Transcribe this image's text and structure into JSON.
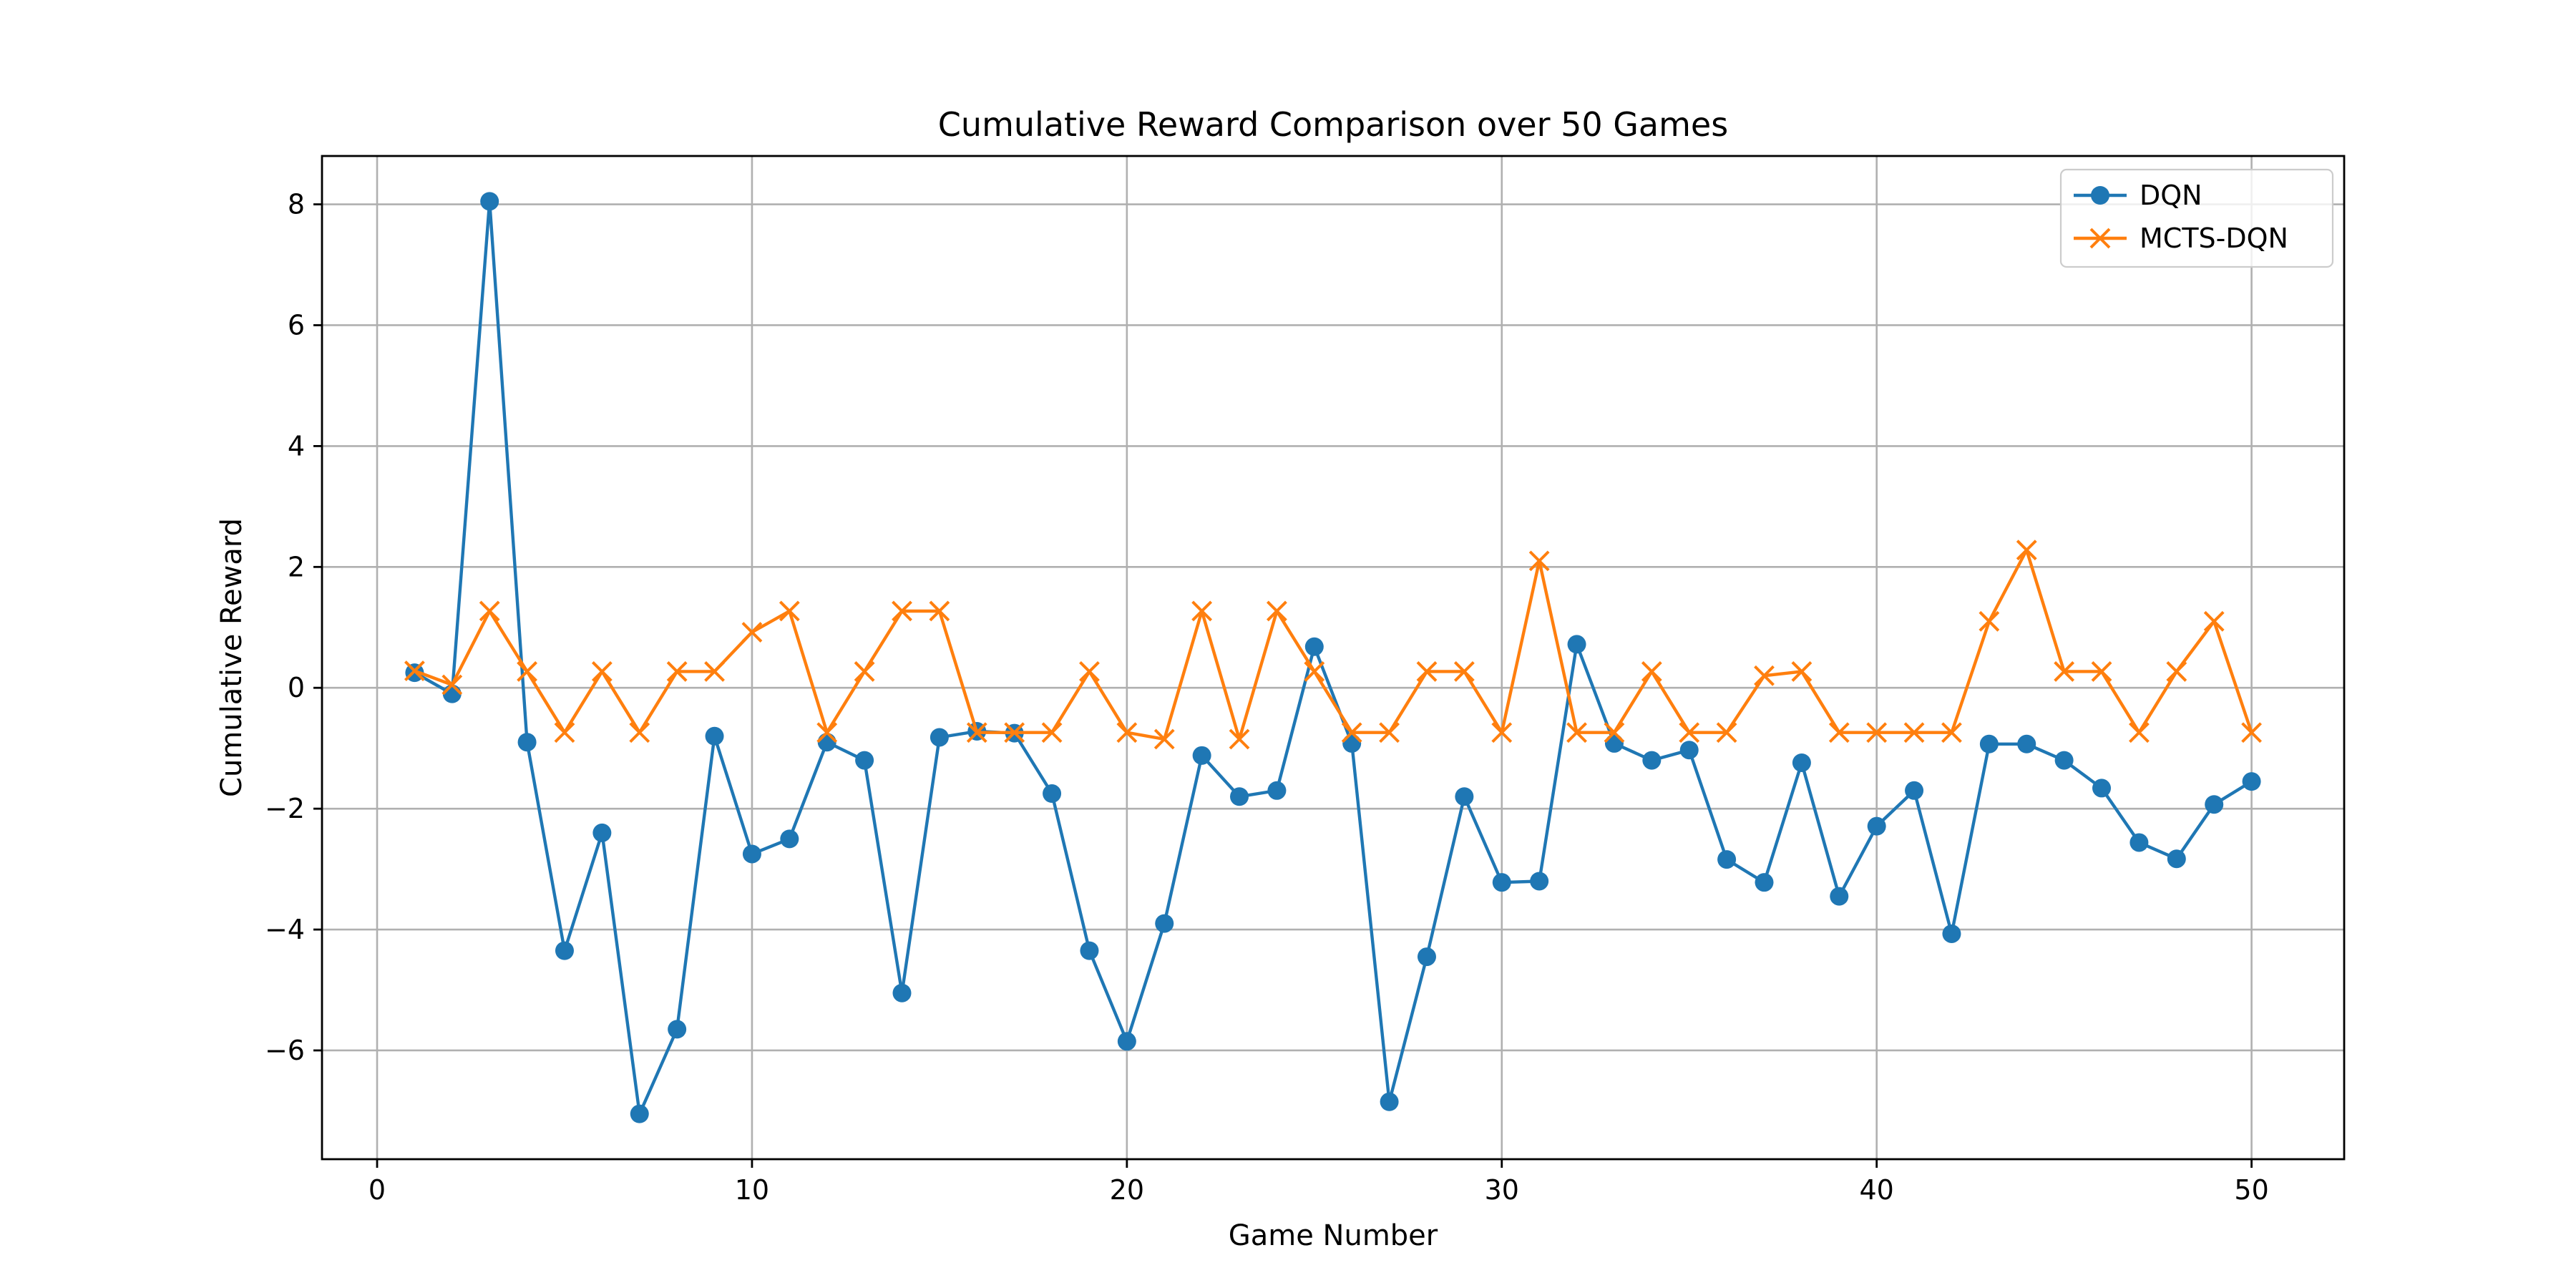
{
  "chart_data": {
    "type": "line",
    "title": "Cumulative Reward Comparison over 50 Games",
    "xlabel": "Game Number",
    "ylabel": "Cumulative Reward",
    "xlim": [
      -1.47,
      52.47
    ],
    "ylim": [
      -7.8,
      8.8
    ],
    "xticks": [
      0,
      10,
      20,
      30,
      40,
      50
    ],
    "xtick_labels": [
      "0",
      "10",
      "20",
      "30",
      "40",
      "50"
    ],
    "yticks": [
      -6,
      -4,
      -2,
      0,
      2,
      4,
      6,
      8
    ],
    "ytick_labels": [
      "−6",
      "−4",
      "−2",
      "0",
      "2",
      "4",
      "6",
      "8"
    ],
    "grid": true,
    "legend_position": "upper right",
    "x": [
      1,
      2,
      3,
      4,
      5,
      6,
      7,
      8,
      9,
      10,
      11,
      12,
      13,
      14,
      15,
      16,
      17,
      18,
      19,
      20,
      21,
      22,
      23,
      24,
      25,
      26,
      27,
      28,
      29,
      30,
      31,
      32,
      33,
      34,
      35,
      36,
      37,
      38,
      39,
      40,
      41,
      42,
      43,
      44,
      45,
      46,
      47,
      48,
      49,
      50
    ],
    "series": [
      {
        "name": "DQN",
        "color": "#1f77b4",
        "marker": "circle",
        "values": [
          0.25,
          -0.1,
          8.05,
          -0.9,
          -4.35,
          -2.4,
          -7.05,
          -5.65,
          -0.8,
          -2.75,
          -2.5,
          -0.9,
          -1.2,
          -5.05,
          -0.82,
          -0.72,
          -0.75,
          -1.75,
          -4.35,
          -5.85,
          -3.9,
          -1.12,
          -1.8,
          -1.7,
          0.68,
          -0.92,
          -6.85,
          -4.45,
          -1.8,
          -3.22,
          -3.2,
          0.72,
          -0.92,
          -1.2,
          -1.03,
          -2.84,
          -3.22,
          -1.24,
          -3.45,
          -2.29,
          -1.7,
          -4.07,
          -0.93,
          -0.93,
          -1.2,
          -1.66,
          -2.56,
          -2.83,
          -1.93,
          -1.55
        ]
      },
      {
        "name": "MCTS-DQN",
        "color": "#ff7f0e",
        "marker": "x",
        "values": [
          0.28,
          0.05,
          1.27,
          0.27,
          -0.74,
          0.27,
          -0.74,
          0.27,
          0.27,
          0.92,
          1.27,
          -0.74,
          0.27,
          1.27,
          1.27,
          -0.74,
          -0.74,
          -0.74,
          0.27,
          -0.74,
          -0.85,
          1.27,
          -0.85,
          1.27,
          0.27,
          -0.74,
          -0.74,
          0.27,
          0.27,
          -0.74,
          2.1,
          -0.74,
          -0.74,
          0.27,
          -0.74,
          -0.74,
          0.2,
          0.27,
          -0.74,
          -0.74,
          -0.74,
          -0.74,
          1.1,
          2.28,
          0.27,
          0.27,
          -0.74,
          0.27,
          1.1,
          -0.74
        ]
      }
    ]
  }
}
